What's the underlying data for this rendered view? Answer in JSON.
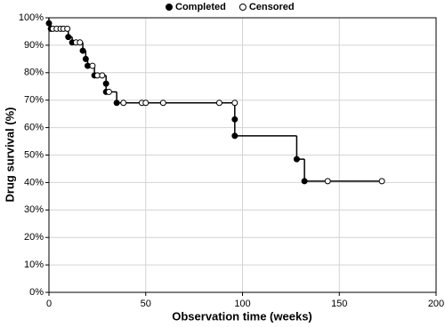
{
  "chart_data": {
    "type": "survival",
    "x_label": "Observation time (weeks)",
    "y_label": "Drug survival (%)",
    "series": [
      {
        "name": "Completed",
        "marker": "filled",
        "color": "#000000",
        "x": [
          0,
          1,
          10,
          12,
          17.5,
          19,
          20,
          23.5,
          29.5,
          29.5,
          35,
          96,
          96,
          128,
          132
        ],
        "values": [
          98,
          96,
          93,
          91,
          88,
          85,
          82.5,
          79,
          76,
          73,
          69,
          63,
          57,
          48.5,
          40.5
        ]
      },
      {
        "name": "Censored",
        "marker": "open",
        "color": "#000000",
        "x": [
          2,
          4,
          6,
          7.5,
          9.5,
          14,
          16,
          22.5,
          25,
          27.5,
          31,
          38.5,
          48,
          50,
          59,
          88,
          96,
          144,
          172
        ],
        "values": [
          96,
          96,
          96,
          96,
          96,
          91,
          91,
          82.5,
          79,
          79,
          73,
          69,
          69,
          69,
          69,
          69,
          69,
          40.5,
          40.5
        ]
      }
    ],
    "xlim": [
      0,
      200
    ],
    "xticks": [
      0,
      50,
      100,
      150,
      200
    ],
    "ylim": [
      0,
      100
    ],
    "yticks": [
      {
        "value": 0,
        "label": "0%"
      },
      {
        "value": 10,
        "label": "10%"
      },
      {
        "value": 20,
        "label": "20%"
      },
      {
        "value": 30,
        "label": "30%"
      },
      {
        "value": 40,
        "label": "40%"
      },
      {
        "value": 50,
        "label": "50%"
      },
      {
        "value": 60,
        "label": "60%"
      },
      {
        "value": 70,
        "label": "70%"
      },
      {
        "value": 80,
        "label": "80%"
      },
      {
        "value": 90,
        "label": "90%"
      },
      {
        "value": 100,
        "label": "100%"
      }
    ],
    "grid": true,
    "legend": "top"
  }
}
